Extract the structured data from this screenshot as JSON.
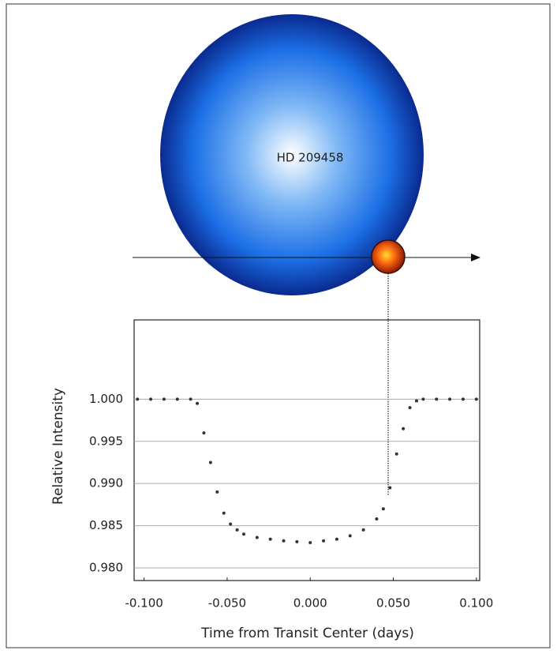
{
  "chart_data": {
    "type": "scatter",
    "annotation": "HD 209458",
    "xlabel": "Time from Transit Center (days)",
    "ylabel": "Relative Intensity",
    "x": [
      -0.104,
      -0.096,
      -0.088,
      -0.08,
      -0.072,
      -0.068,
      -0.064,
      -0.06,
      -0.056,
      -0.052,
      -0.048,
      -0.044,
      -0.04,
      -0.032,
      -0.024,
      -0.016,
      -0.008,
      0.0,
      0.008,
      0.016,
      0.024,
      0.032,
      0.04,
      0.044,
      0.048,
      0.052,
      0.056,
      0.06,
      0.064,
      0.068,
      0.076,
      0.084,
      0.092,
      0.1
    ],
    "values": [
      1.0,
      1.0,
      1.0,
      1.0,
      1.0,
      0.9995,
      0.996,
      0.9925,
      0.989,
      0.9865,
      0.9852,
      0.9845,
      0.984,
      0.9836,
      0.9834,
      0.9832,
      0.9831,
      0.983,
      0.9832,
      0.9834,
      0.9838,
      0.9845,
      0.9858,
      0.987,
      0.9895,
      0.9935,
      0.9965,
      0.999,
      0.9998,
      1.0,
      1.0,
      1.0,
      1.0,
      1.0
    ],
    "color": "#333333",
    "xlim": [
      -0.106,
      0.102
    ],
    "ylim": [
      0.9785,
      1.0094
    ],
    "xticks": [
      {
        "value": -0.1,
        "label": "-0.100"
      },
      {
        "value": -0.05,
        "label": "-0.050"
      },
      {
        "value": 0,
        "label": "0.000"
      },
      {
        "value": 0.05,
        "label": "0.050"
      },
      {
        "value": 0.1,
        "label": "0.100"
      }
    ],
    "yticks": [
      {
        "value": 0.98,
        "label": "0.980"
      },
      {
        "value": 0.985,
        "label": "0.985"
      },
      {
        "value": 0.99,
        "label": "0.990"
      },
      {
        "value": 0.995,
        "label": "0.995"
      },
      {
        "value": 1.0,
        "label": "1.000"
      }
    ],
    "grid": true
  }
}
